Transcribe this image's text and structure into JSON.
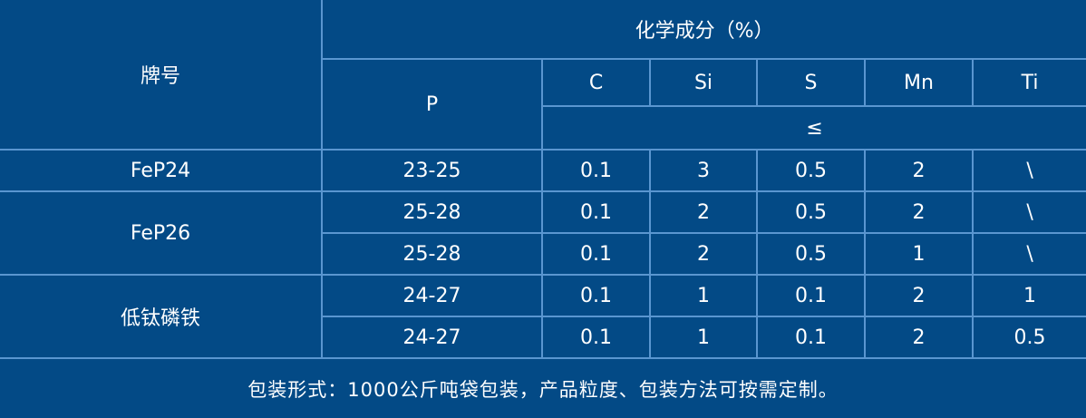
{
  "header": {
    "grade": "牌号",
    "composition": "化学成分（%）",
    "p": "P",
    "elements": [
      "C",
      "Si",
      "S",
      "Mn",
      "Ti"
    ],
    "le": "≤"
  },
  "rows": [
    {
      "grade": "FeP24",
      "p": "23-25",
      "values": [
        "0.1",
        "3",
        "0.5",
        "2",
        "\\"
      ]
    },
    {
      "grade": "FeP26",
      "p": "25-28",
      "values": [
        "0.1",
        "2",
        "0.5",
        "2",
        "\\"
      ]
    },
    {
      "p": "25-28",
      "values": [
        "0.1",
        "2",
        "0.5",
        "1",
        "\\"
      ]
    },
    {
      "grade": "低钛磷铁",
      "p": "24-27",
      "values": [
        "0.1",
        "1",
        "0.1",
        "2",
        "1"
      ]
    },
    {
      "p": "24-27",
      "values": [
        "0.1",
        "1",
        "0.1",
        "2",
        "0.5"
      ]
    }
  ],
  "footer": "包装形式：1000公斤吨袋包装，产品粒度、包装方法可按需定制。",
  "colors": {
    "background": "#034a86",
    "grid": "#5a96d0",
    "text": "#ffffff"
  }
}
